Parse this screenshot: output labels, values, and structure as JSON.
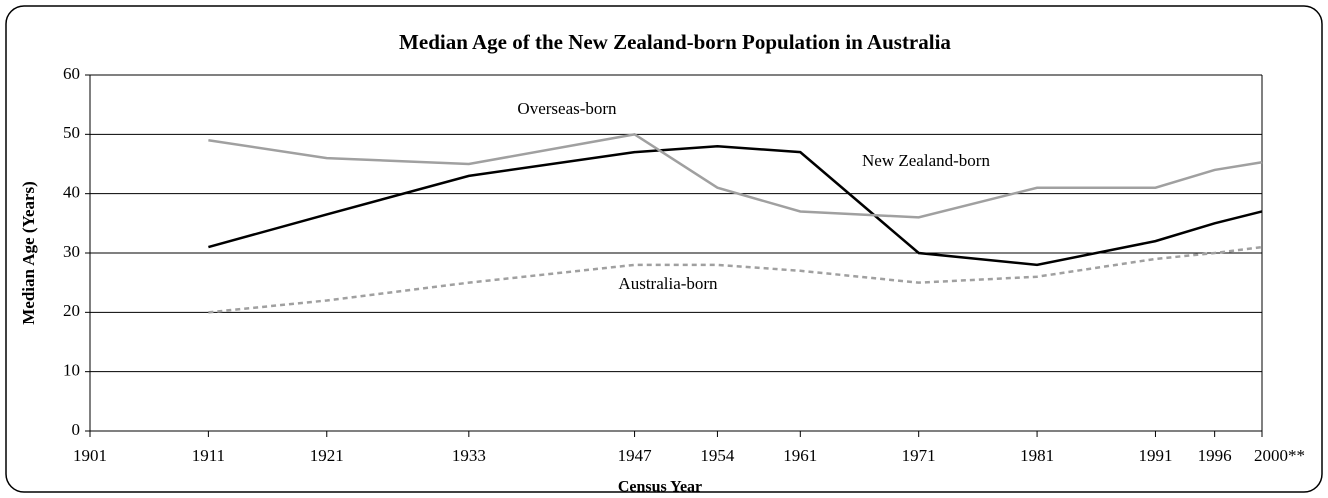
{
  "chart_data": {
    "type": "line",
    "title": "Median Age of the New Zealand-born Population in Australia",
    "xlabel": "Census Year",
    "ylabel": "Median Age (Years)",
    "x": [
      1911,
      1921,
      1933,
      1947,
      1954,
      1961,
      1971,
      1981,
      1991,
      1996,
      2000
    ],
    "series": [
      {
        "name": "New Zealand-born",
        "color": "#000000",
        "dash": false,
        "values": [
          31,
          36.5,
          43,
          47,
          48,
          47,
          30,
          28,
          32,
          35,
          37
        ]
      },
      {
        "name": "Overseas-born",
        "color": "#a0a0a0",
        "dash": false,
        "values": [
          49,
          46,
          45,
          50,
          41,
          37,
          36,
          41,
          41,
          44,
          45.3
        ]
      },
      {
        "name": "Australia-born",
        "color": "#a0a0a0",
        "dash": true,
        "values": [
          20,
          22,
          25,
          28,
          28,
          27,
          25,
          26,
          29,
          30,
          31
        ]
      }
    ],
    "xlim": [
      1901,
      2000
    ],
    "xticks": [
      1901,
      1911,
      1921,
      1933,
      1947,
      1954,
      1961,
      1971,
      1981,
      1991,
      1996,
      {
        "value": 2000,
        "label": "2000**"
      }
    ],
    "ylim": [
      0,
      60
    ],
    "yticks": [
      0,
      10,
      20,
      30,
      40,
      50,
      60
    ],
    "grid": true
  }
}
